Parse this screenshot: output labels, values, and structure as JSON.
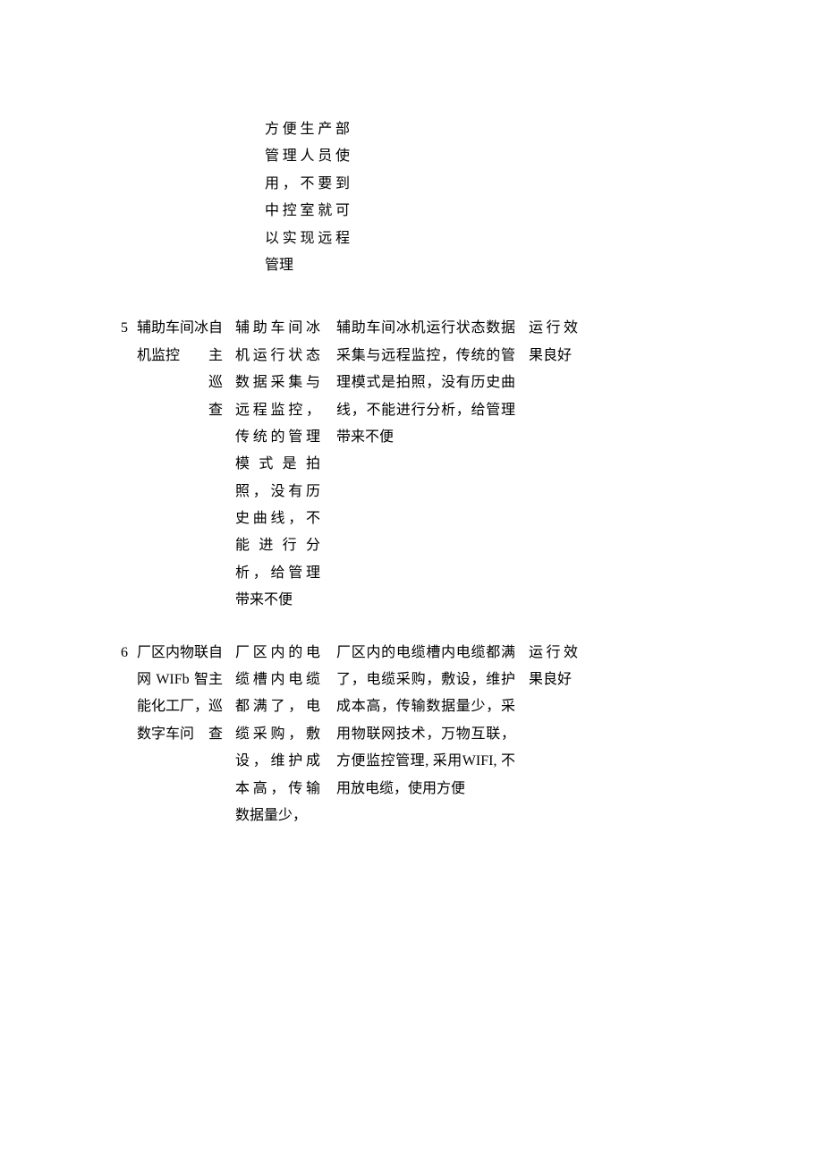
{
  "continuation_prev": "方便生产部管理人员使用，不要到中控室就可以实现远程管理",
  "rows": [
    {
      "num": "5",
      "name": "辅助车间冰机监控",
      "type_c1": "自",
      "type_c2": "主",
      "type_c3": "巡",
      "type_c4": "查",
      "desc1": "辅助车间冰机运行状态数据采集与远程监控，传统的管理模式是拍照，没有历史曲线，不能进行分析，给管理带来不便",
      "desc2": "辅助车间冰机运行状态数据采集与远程监控，传统的管理模式是拍照，没有历史曲线，不能进行分析，给管理带来不便",
      "result": "运行效果良好"
    },
    {
      "num": "6",
      "name": "厂区内物联网WIFb智能化工厂，数字车问",
      "type_c1": "自",
      "type_c2": "主",
      "type_c3": "巡",
      "type_c4": "查",
      "desc1": "厂区内的电缆槽内电缆都满了，电缆采购，敷设，维护成本高，传输数据量少，",
      "desc2": "厂区内的电缆槽内电缆都满了，电缆采购，敷设，维护成本高，传输数据量少，采用物联网技术，万物互联，方便监控管理, 采用WIFI, 不用放电缆，使用方便",
      "result": "运行效果良好"
    }
  ]
}
